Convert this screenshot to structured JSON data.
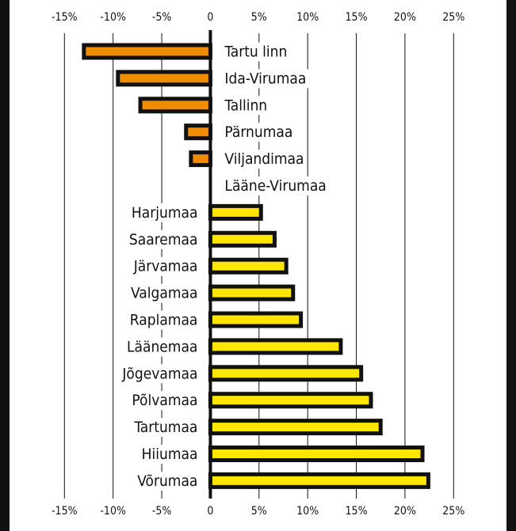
{
  "chart_data": {
    "type": "hbar",
    "categories": [
      "Tartu linn",
      "Ida-Virumaa",
      "Tallinn",
      "Pärnumaa",
      "Viljandimaa",
      "Lääne-Virumaa",
      "Harjumaa",
      "Saaremaa",
      "Järvamaa",
      "Valgamaa",
      "Raplamaa",
      "Läänemaa",
      "Jõgevamaa",
      "Põlvamaa",
      "Tartumaa",
      "Hiiumaa",
      "Võrumaa"
    ],
    "values": [
      -13,
      -9.5,
      -7.2,
      -2.5,
      -2,
      0,
      5.2,
      6.6,
      7.8,
      8.5,
      9.3,
      13.4,
      15.5,
      16.5,
      17.5,
      21.8,
      22.4
    ],
    "color_negative": "#f08c00",
    "color_positive": "#ffe600",
    "xlim": [
      -15,
      25
    ],
    "xticks": [
      {
        "value": -15,
        "label": "-15%"
      },
      {
        "value": -10,
        "label": "-10%"
      },
      {
        "value": -5,
        "label": "-5%"
      },
      0,
      {
        "value": 5,
        "label": "5%"
      },
      {
        "value": 10,
        "label": "10%"
      },
      {
        "value": 15,
        "label": "15%"
      },
      {
        "value": 20,
        "label": "20%"
      },
      {
        "value": 25,
        "label": "25%"
      }
    ],
    "grid": true
  }
}
